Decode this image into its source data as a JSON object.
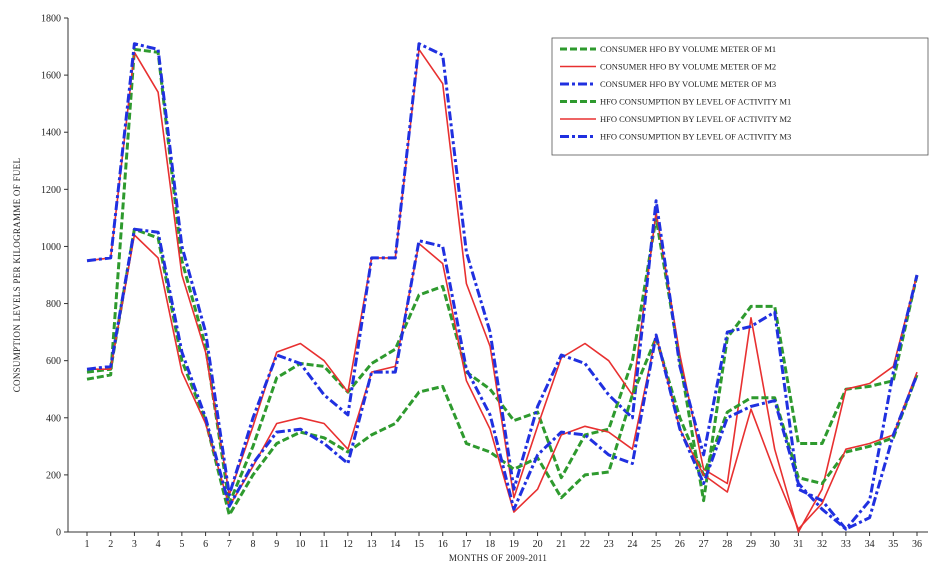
{
  "chart_data": {
    "type": "line",
    "title": "",
    "xlabel": "MONTHS OF 2009-2011",
    "ylabel": "CONSUMPTION LEVELS PER KILOGRAMME OF FUEL",
    "ylim": [
      0,
      1800
    ],
    "yticks": [
      0,
      200,
      400,
      600,
      800,
      1000,
      1200,
      1400,
      1600,
      1800
    ],
    "categories": [
      "1",
      "2",
      "3",
      "4",
      "5",
      "6",
      "7",
      "8",
      "9",
      "10",
      "11",
      "12",
      "13",
      "14",
      "15",
      "16",
      "17",
      "18",
      "19",
      "20",
      "21",
      "22",
      "23",
      "24",
      "25",
      "26",
      "27",
      "28",
      "29",
      "30",
      "31",
      "32",
      "33",
      "34",
      "35",
      "36"
    ],
    "grid": false,
    "legend_position": "top-right",
    "series": [
      {
        "name": "CONSUMER HFO BY VOLUME METER OF M1",
        "color": "#2e9a2e",
        "style": "dashed",
        "values": [
          535,
          550,
          1690,
          1680,
          950,
          650,
          100,
          300,
          540,
          590,
          580,
          490,
          590,
          640,
          830,
          860,
          560,
          500,
          390,
          420,
          190,
          340,
          360,
          600,
          1100,
          600,
          110,
          680,
          790,
          790,
          310,
          310,
          500,
          510,
          530,
          900
        ]
      },
      {
        "name": "CONSUMER HFO BY VOLUME METER OF M2",
        "color": "#e83030",
        "style": "solid",
        "values": [
          950,
          960,
          1680,
          1540,
          900,
          630,
          130,
          370,
          630,
          660,
          600,
          490,
          960,
          960,
          1690,
          1570,
          870,
          650,
          120,
          370,
          610,
          660,
          600,
          480,
          1120,
          620,
          220,
          170,
          750,
          290,
          0,
          150,
          500,
          520,
          580,
          900
        ]
      },
      {
        "name": "CONSUMER HFO BY VOLUME METER OF M3",
        "color": "#2030e0",
        "style": "dashdot",
        "values": [
          950,
          960,
          1710,
          1690,
          1000,
          700,
          130,
          400,
          620,
          590,
          480,
          410,
          960,
          960,
          1710,
          1670,
          980,
          700,
          150,
          440,
          620,
          590,
          480,
          400,
          1160,
          580,
          270,
          700,
          720,
          770,
          150,
          110,
          10,
          110,
          560,
          900
        ]
      },
      {
        "name": "HFO CONSUMPTION BY LEVEL OF ACTIVITY M1",
        "color": "#2e9a2e",
        "style": "dashed",
        "values": [
          560,
          570,
          1060,
          1030,
          600,
          390,
          60,
          200,
          310,
          350,
          330,
          280,
          340,
          380,
          490,
          510,
          310,
          280,
          220,
          260,
          120,
          200,
          210,
          480,
          680,
          400,
          200,
          420,
          470,
          470,
          190,
          170,
          280,
          300,
          330,
          550
        ]
      },
      {
        "name": "HFO CONSUMPTION BY LEVEL OF ACTIVITY M2",
        "color": "#e83030",
        "style": "solid",
        "values": [
          570,
          570,
          1040,
          960,
          560,
          380,
          90,
          230,
          380,
          400,
          380,
          290,
          560,
          580,
          1010,
          940,
          530,
          360,
          70,
          150,
          340,
          370,
          350,
          290,
          690,
          360,
          200,
          140,
          430,
          210,
          10,
          100,
          290,
          310,
          340,
          560
        ]
      },
      {
        "name": "HFO CONSUMPTION BY LEVEL OF ACTIVITY M3",
        "color": "#2030e0",
        "style": "dashdot",
        "values": [
          570,
          580,
          1060,
          1050,
          630,
          400,
          90,
          240,
          350,
          360,
          310,
          240,
          560,
          560,
          1020,
          1000,
          570,
          410,
          80,
          270,
          350,
          340,
          270,
          240,
          690,
          360,
          170,
          400,
          440,
          460,
          170,
          80,
          10,
          50,
          340,
          550
        ]
      }
    ]
  }
}
